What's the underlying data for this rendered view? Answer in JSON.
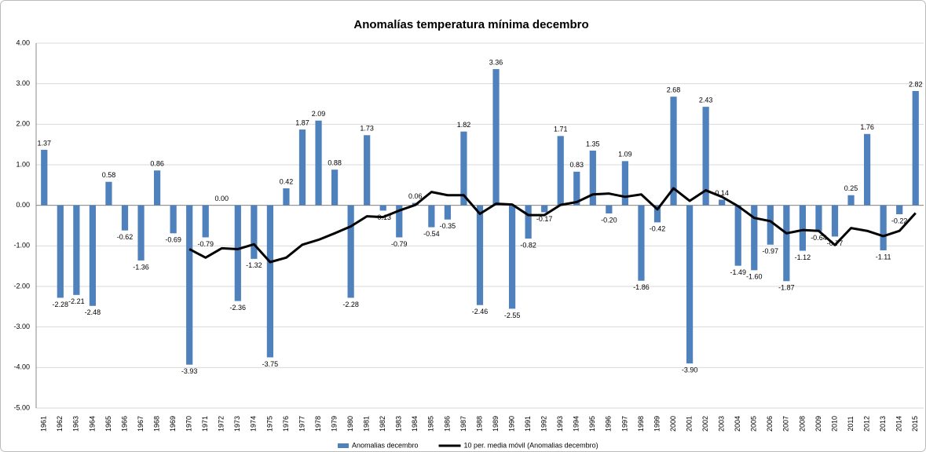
{
  "chart_data": {
    "type": "bar",
    "title": "Anomalías temperatura mínima decembro",
    "categories": [
      "1961",
      "1962",
      "1963",
      "1964",
      "1965",
      "1966",
      "1967",
      "1968",
      "1969",
      "1970",
      "1971",
      "1972",
      "1973",
      "1974",
      "1975",
      "1976",
      "1977",
      "1978",
      "1979",
      "1980",
      "1981",
      "1982",
      "1983",
      "1984",
      "1985",
      "1986",
      "1987",
      "1988",
      "1989",
      "1990",
      "1991",
      "1992",
      "1993",
      "1994",
      "1995",
      "1996",
      "1997",
      "1998",
      "1999",
      "2000",
      "2001",
      "2002",
      "2003",
      "2004",
      "2005",
      "2006",
      "2007",
      "2008",
      "2009",
      "2010",
      "2011",
      "2012",
      "2013",
      "2014",
      "2015"
    ],
    "series": [
      {
        "name": "Anomalias decembro",
        "type": "bar",
        "color": "#4f81bd",
        "values": [
          1.37,
          -2.28,
          -2.21,
          -2.48,
          0.58,
          -0.62,
          -1.36,
          0.86,
          -0.69,
          -3.93,
          -0.79,
          0.0,
          -2.36,
          -1.32,
          -3.75,
          0.42,
          1.87,
          2.09,
          0.88,
          -2.28,
          1.73,
          -0.13,
          -0.79,
          0.06,
          -0.54,
          -0.35,
          1.82,
          -2.46,
          3.36,
          -2.55,
          -0.82,
          -0.17,
          1.71,
          0.83,
          1.35,
          -0.2,
          1.09,
          -1.86,
          -0.42,
          2.68,
          -3.9,
          2.43,
          0.14,
          -1.49,
          -1.6,
          -0.97,
          -1.87,
          -1.12,
          -0.64,
          -0.77,
          0.25,
          1.76,
          -1.11,
          -0.22,
          2.82
        ],
        "value_labels": [
          "1.37",
          "-2.28",
          "-2.21",
          "-2.48",
          "0.58",
          "-0.62",
          "-1.36",
          "0.86",
          "-0.69",
          "-3.93",
          "-0.79",
          "0.00",
          "-2.36",
          "-1.32",
          "-3.75",
          "0.42",
          "1.87",
          "2.09",
          "0.88",
          "-2.28",
          "1.73",
          "-0.13",
          "-0.79",
          "0.06",
          "-0.54",
          "-0.35",
          "1.82",
          "-2.46",
          "3.36",
          "-2.55",
          "-0.82",
          "-0.17",
          "1.71",
          "0.83",
          "1.35",
          "-0.20",
          "1.09",
          "-1.86",
          "-0.42",
          "2.68",
          "-3.90",
          "2.43",
          "0.14",
          "-1.49",
          "-1.60",
          "-0.97",
          "-1.87",
          "-1.12",
          "-0.64",
          "-0.77",
          "0.25",
          "1.76",
          "-1.11",
          "-0.22",
          "2.82"
        ]
      },
      {
        "name": "10 per. media móvil (Anomalias decembro)",
        "type": "line",
        "color": "#000000",
        "values": [
          null,
          null,
          null,
          null,
          null,
          null,
          null,
          null,
          null,
          -1.08,
          -1.29,
          -1.06,
          -1.08,
          -0.96,
          -1.4,
          -1.29,
          -0.97,
          -0.85,
          -0.69,
          -0.52,
          -0.27,
          -0.29,
          -0.13,
          0.01,
          0.33,
          0.25,
          0.25,
          -0.21,
          0.04,
          0.02,
          -0.24,
          -0.24,
          0.01,
          0.08,
          0.27,
          0.29,
          0.21,
          0.27,
          -0.1,
          0.42,
          0.11,
          0.37,
          0.21,
          -0.02,
          -0.31,
          -0.39,
          -0.69,
          -0.61,
          -0.63,
          -0.98,
          -0.56,
          -0.63,
          -0.76,
          -0.63,
          -0.19
        ]
      }
    ],
    "ylim": [
      -5,
      4
    ],
    "yticks": [
      {
        "value": -5,
        "label": "-5.00"
      },
      {
        "value": -4,
        "label": "-4.00"
      },
      {
        "value": -3,
        "label": "-3.00"
      },
      {
        "value": -2,
        "label": "-2.00"
      },
      {
        "value": -1,
        "label": "-1.00"
      },
      {
        "value": 0,
        "label": "0.00"
      },
      {
        "value": 1,
        "label": "1.00"
      },
      {
        "value": 2,
        "label": "2.00"
      },
      {
        "value": 3,
        "label": "3.00"
      },
      {
        "value": 4,
        "label": "4.00"
      }
    ],
    "grid": true,
    "legend": "bottom"
  }
}
